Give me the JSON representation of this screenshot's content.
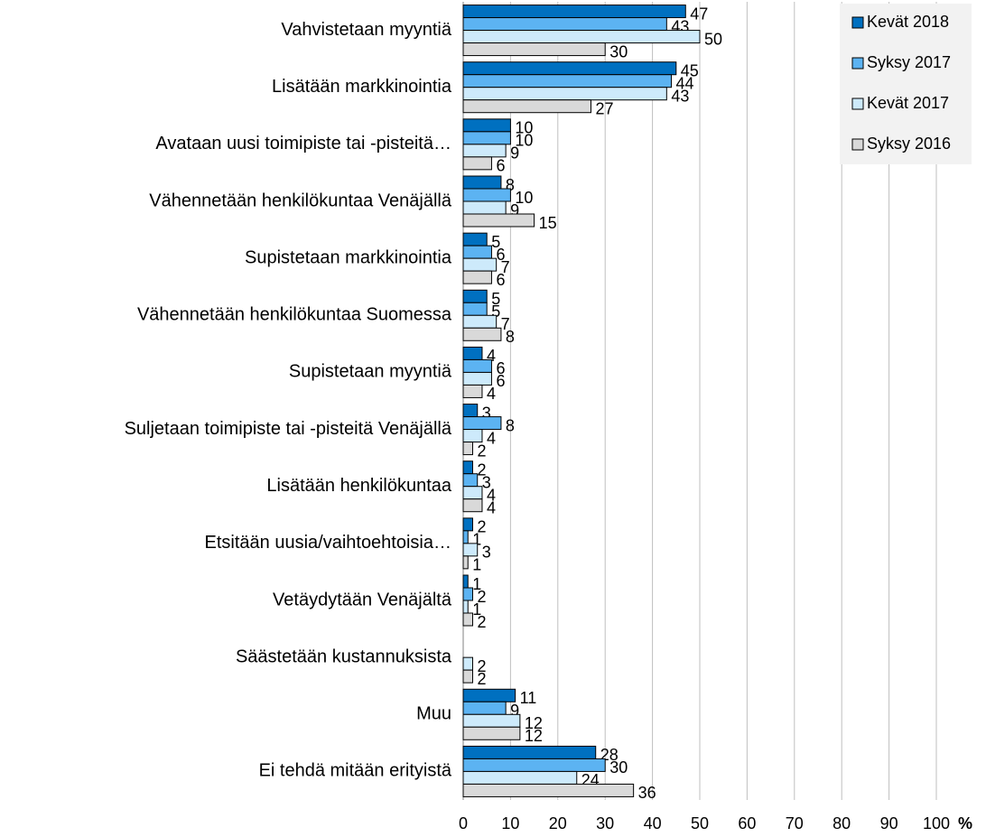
{
  "chart_data": {
    "type": "bar",
    "orientation": "horizontal",
    "categories": [
      "Vahvistetaan myyntiä",
      "Lisätään markkinointia",
      "Avataan uusi toimipiste tai -pisteitä…",
      "Vähennetään henkilökuntaa Venäjällä",
      "Supistetaan markkinointia",
      "Vähennetään henkilökuntaa Suomessa",
      "Supistetaan myyntiä",
      "Suljetaan toimipiste tai -pisteitä Venäjällä",
      "Lisätään henkilökuntaa",
      "Etsitään uusia/vaihtoehtoisia…",
      "Vetäydytään Venäjältä",
      "Säästetään kustannuksista",
      "Muu",
      "Ei tehdä mitään erityistä"
    ],
    "series": [
      {
        "name": "Kevät 2018",
        "color": "#0070c0",
        "values": [
          47,
          45,
          10,
          8,
          5,
          5,
          4,
          3,
          2,
          2,
          1,
          null,
          11,
          28
        ]
      },
      {
        "name": "Syksy 2017",
        "color": "#5cb3f2",
        "values": [
          43,
          44,
          10,
          10,
          6,
          5,
          6,
          8,
          3,
          1,
          2,
          null,
          9,
          30
        ]
      },
      {
        "name": "Kevät 2017",
        "color": "#cdeafb",
        "values": [
          50,
          43,
          9,
          9,
          7,
          7,
          6,
          4,
          4,
          3,
          1,
          2,
          12,
          24
        ]
      },
      {
        "name": "Syksy 2016",
        "color": "#d9d9d9",
        "values": [
          30,
          27,
          6,
          15,
          6,
          8,
          4,
          2,
          4,
          1,
          2,
          2,
          12,
          36
        ]
      }
    ],
    "x_unit": "%",
    "xlim": [
      0,
      100
    ],
    "xticks": [
      0,
      10,
      20,
      30,
      40,
      50,
      60,
      70,
      80,
      90,
      100
    ],
    "grid": true,
    "legend": "top-right"
  }
}
